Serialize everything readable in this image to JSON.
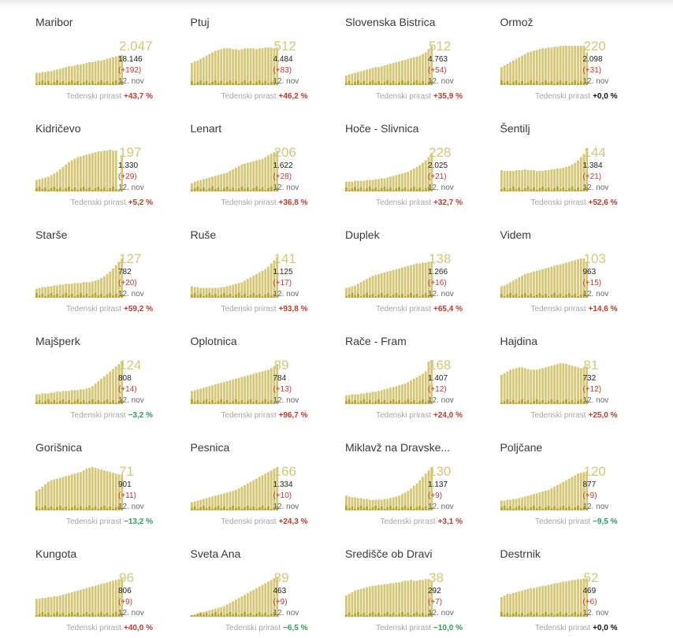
{
  "colors": {
    "bar_light": "#d6c776",
    "bar_dark": "#b8a432",
    "increase": "#c0392b",
    "decrease": "#27a35a",
    "neutral": "#111111"
  },
  "weekly_label": "Tedenski prirast",
  "chart_data": [
    {
      "type": "bar",
      "title": "Maribor",
      "total": "2.047",
      "cumulative": "18.146",
      "change": "(+192)",
      "date": "12. nov",
      "weekly": "+43,7 %",
      "trend": "pos",
      "values": [
        15,
        15,
        16,
        16,
        17,
        17,
        18,
        19,
        20,
        21,
        22,
        23,
        23,
        24,
        25,
        25,
        26,
        27,
        28,
        28,
        29,
        30,
        30,
        31,
        32,
        33,
        34,
        35,
        36,
        37
      ]
    },
    {
      "type": "bar",
      "title": "Ptuj",
      "total": "512",
      "cumulative": "4.484",
      "change": "(+83)",
      "date": "12. nov",
      "weekly": "+46,2 %",
      "trend": "pos",
      "values": [
        27,
        29,
        30,
        32,
        34,
        36,
        38,
        40,
        42,
        43,
        44,
        45,
        45,
        45,
        44,
        44,
        43,
        44,
        45,
        45,
        45,
        45,
        44,
        45,
        45,
        46,
        46,
        46,
        45,
        46
      ]
    },
    {
      "type": "bar",
      "title": "Slovenska Bistrica",
      "total": "512",
      "cumulative": "4.763",
      "change": "(+54)",
      "date": "12. nov",
      "weekly": "+35,9 %",
      "trend": "pos",
      "values": [
        12,
        13,
        14,
        15,
        16,
        17,
        18,
        19,
        20,
        21,
        22,
        22,
        23,
        24,
        25,
        26,
        27,
        28,
        29,
        30,
        31,
        32,
        33,
        34,
        35,
        36,
        38,
        40,
        44,
        48
      ]
    },
    {
      "type": "bar",
      "title": "Ormož",
      "total": "220",
      "cumulative": "2.098",
      "change": "(+31)",
      "date": "12. nov",
      "weekly": "+0,0 %",
      "trend": "zero",
      "values": [
        22,
        24,
        26,
        28,
        30,
        32,
        34,
        36,
        38,
        40,
        41,
        42,
        43,
        44,
        45,
        45,
        46,
        46,
        47,
        47,
        48,
        48,
        48,
        48,
        48,
        48,
        48,
        48,
        48,
        40
      ]
    },
    {
      "type": "bar",
      "title": "Kidričevo",
      "total": "197",
      "cumulative": "1.330",
      "change": "(+29)",
      "date": "12. nov",
      "weekly": "+5,2 %",
      "trend": "pos",
      "values": [
        14,
        15,
        16,
        17,
        18,
        20,
        22,
        24,
        27,
        30,
        33,
        36,
        38,
        40,
        42,
        43,
        44,
        45,
        46,
        47,
        48,
        49,
        49,
        50,
        50,
        51,
        50,
        50,
        2,
        44
      ]
    },
    {
      "type": "bar",
      "title": "Lenart",
      "total": "206",
      "cumulative": "1.622",
      "change": "(+28)",
      "date": "12. nov",
      "weekly": "+36,8 %",
      "trend": "pos",
      "values": [
        10,
        12,
        13,
        14,
        15,
        16,
        17,
        18,
        19,
        20,
        21,
        22,
        23,
        25,
        27,
        29,
        31,
        33,
        34,
        35,
        36,
        37,
        38,
        39,
        40,
        42,
        44,
        46,
        48,
        50
      ]
    },
    {
      "type": "bar",
      "title": "Hoče - Slivnica",
      "total": "228",
      "cumulative": "2.025",
      "change": "(+21)",
      "date": "12. nov",
      "weekly": "+32,7 %",
      "trend": "pos",
      "values": [
        12,
        12,
        12,
        13,
        13,
        13,
        13,
        14,
        14,
        14,
        15,
        15,
        16,
        16,
        17,
        18,
        19,
        20,
        21,
        22,
        23,
        24,
        26,
        28,
        30,
        32,
        35,
        38,
        42,
        47
      ]
    },
    {
      "type": "bar",
      "title": "Šentilj",
      "total": "144",
      "cumulative": "1.384",
      "change": "(+21)",
      "date": "12. nov",
      "weekly": "+52,6 %",
      "trend": "pos",
      "values": [
        26,
        25,
        25,
        25,
        25,
        26,
        26,
        26,
        27,
        26,
        26,
        26,
        25,
        25,
        25,
        26,
        26,
        27,
        27,
        28,
        28,
        29,
        30,
        31,
        33,
        35,
        38,
        42,
        46,
        52
      ]
    },
    {
      "type": "bar",
      "title": "Starše",
      "total": "127",
      "cumulative": "782",
      "change": "(+20)",
      "date": "12. nov",
      "weekly": "+59,2 %",
      "trend": "pos",
      "values": [
        11,
        12,
        13,
        13,
        14,
        14,
        15,
        15,
        16,
        16,
        17,
        17,
        17,
        18,
        18,
        18,
        19,
        19,
        19,
        20,
        21,
        22,
        24,
        26,
        29,
        32,
        36,
        40,
        44,
        48
      ]
    },
    {
      "type": "bar",
      "title": "Ruše",
      "total": "141",
      "cumulative": "1.125",
      "change": "(+17)",
      "date": "12. nov",
      "weekly": "+93,8 %",
      "trend": "pos",
      "values": [
        14,
        13,
        13,
        12,
        12,
        12,
        12,
        12,
        12,
        12,
        13,
        13,
        14,
        15,
        16,
        17,
        18,
        19,
        21,
        23,
        25,
        27,
        29,
        31,
        33,
        35,
        38,
        42,
        46,
        50
      ]
    },
    {
      "type": "bar",
      "title": "Duplek",
      "total": "138",
      "cumulative": "1.266",
      "change": "(+16)",
      "date": "12. nov",
      "weekly": "+65,4 %",
      "trend": "pos",
      "values": [
        12,
        13,
        14,
        15,
        17,
        19,
        21,
        23,
        25,
        27,
        28,
        29,
        30,
        31,
        32,
        33,
        34,
        35,
        36,
        37,
        38,
        39,
        40,
        41,
        42,
        42,
        43,
        43,
        44,
        44
      ]
    },
    {
      "type": "bar",
      "title": "Videm",
      "total": "103",
      "cumulative": "963",
      "change": "(+15)",
      "date": "12. nov",
      "weekly": "+14,6 %",
      "trend": "pos",
      "values": [
        14,
        15,
        17,
        19,
        21,
        23,
        25,
        27,
        29,
        30,
        31,
        32,
        33,
        34,
        35,
        36,
        37,
        38,
        39,
        40,
        41,
        42,
        43,
        44,
        45,
        46,
        47,
        48,
        48,
        44
      ]
    },
    {
      "type": "bar",
      "title": "Majšperk",
      "total": "124",
      "cumulative": "808",
      "change": "(+14)",
      "date": "12. nov",
      "weekly": "−3,2 %",
      "trend": "neg",
      "values": [
        12,
        12,
        13,
        13,
        13,
        14,
        14,
        15,
        15,
        16,
        16,
        16,
        17,
        17,
        17,
        18,
        18,
        19,
        20,
        22,
        25,
        28,
        31,
        34,
        37,
        40,
        43,
        46,
        49,
        52
      ]
    },
    {
      "type": "bar",
      "title": "Oplotnica",
      "total": "89",
      "cumulative": "784",
      "change": "(+13)",
      "date": "12. nov",
      "weekly": "+96,7 %",
      "trend": "pos",
      "values": [
        16,
        17,
        18,
        19,
        20,
        21,
        22,
        23,
        24,
        25,
        26,
        27,
        28,
        29,
        30,
        31,
        32,
        33,
        34,
        35,
        36,
        37,
        38,
        39,
        40,
        41,
        42,
        44,
        46,
        48
      ]
    },
    {
      "type": "bar",
      "title": "Rače - Fram",
      "total": "168",
      "cumulative": "1.407",
      "change": "(+12)",
      "date": "12. nov",
      "weekly": "+24,0 %",
      "trend": "pos",
      "values": [
        11,
        11,
        12,
        12,
        12,
        13,
        13,
        14,
        14,
        15,
        15,
        16,
        17,
        18,
        19,
        20,
        21,
        22,
        23,
        24,
        25,
        27,
        29,
        31,
        33,
        35,
        37,
        40,
        52,
        54
      ]
    },
    {
      "type": "bar",
      "title": "Hajdina",
      "total": "81",
      "cumulative": "732",
      "change": "(+12)",
      "date": "12. nov",
      "weekly": "+25,0 %",
      "trend": "pos",
      "values": [
        36,
        38,
        40,
        42,
        43,
        44,
        45,
        45,
        44,
        43,
        42,
        42,
        42,
        43,
        44,
        45,
        46,
        47,
        48,
        49,
        50,
        50,
        49,
        48,
        47,
        46,
        45,
        44,
        45,
        46
      ]
    },
    {
      "type": "bar",
      "title": "Gorišnica",
      "total": "71",
      "cumulative": "901",
      "change": "(+11)",
      "date": "12. nov",
      "weekly": "−13,2 %",
      "trend": "neg",
      "values": [
        24,
        26,
        29,
        32,
        35,
        37,
        38,
        39,
        40,
        41,
        42,
        43,
        44,
        45,
        46,
        47,
        49,
        51,
        52,
        53,
        52,
        51,
        50,
        49,
        48,
        47,
        46,
        45,
        44,
        44
      ]
    },
    {
      "type": "bar",
      "title": "Pesnica",
      "total": "166",
      "cumulative": "1.334",
      "change": "(+10)",
      "date": "12. nov",
      "weekly": "+24,3 %",
      "trend": "pos",
      "values": [
        10,
        11,
        12,
        13,
        14,
        15,
        16,
        17,
        18,
        19,
        20,
        21,
        22,
        23,
        24,
        25,
        27,
        29,
        31,
        33,
        35,
        37,
        39,
        41,
        43,
        45,
        47,
        49,
        51,
        52
      ]
    },
    {
      "type": "bar",
      "title": "Miklavž na Dravske...",
      "total": "130",
      "cumulative": "1.137",
      "change": "(+9)",
      "date": "12. nov",
      "weekly": "+3,1 %",
      "trend": "pos",
      "values": [
        18,
        17,
        16,
        16,
        15,
        15,
        14,
        14,
        13,
        13,
        13,
        13,
        13,
        14,
        14,
        15,
        16,
        17,
        18,
        20,
        22,
        24,
        27,
        30,
        33,
        37,
        41,
        45,
        49,
        52
      ]
    },
    {
      "type": "bar",
      "title": "Poljčane",
      "total": "120",
      "cumulative": "877",
      "change": "(+9)",
      "date": "12. nov",
      "weekly": "−9,5 %",
      "trend": "neg",
      "values": [
        12,
        12,
        13,
        13,
        14,
        14,
        15,
        16,
        17,
        18,
        19,
        20,
        21,
        22,
        23,
        24,
        25,
        27,
        29,
        31,
        33,
        35,
        37,
        39,
        41,
        43,
        45,
        46,
        47,
        48
      ]
    },
    {
      "type": "bar",
      "title": "Kungota",
      "total": "96",
      "cumulative": "806",
      "change": "(+9)",
      "date": "12. nov",
      "weekly": "+40,0 %",
      "trend": "pos",
      "values": [
        22,
        22,
        23,
        23,
        24,
        24,
        25,
        25,
        26,
        27,
        28,
        29,
        30,
        31,
        32,
        33,
        34,
        35,
        36,
        37,
        38,
        39,
        40,
        41,
        42,
        43,
        44,
        45,
        46,
        47
      ]
    },
    {
      "type": "bar",
      "title": "Sveta Ana",
      "total": "89",
      "cumulative": "463",
      "change": "(+9)",
      "date": "12. nov",
      "weekly": "−6,5 %",
      "trend": "neg",
      "values": [
        2,
        3,
        4,
        5,
        6,
        7,
        8,
        9,
        10,
        11,
        12,
        13,
        15,
        17,
        19,
        21,
        23,
        25,
        27,
        29,
        31,
        33,
        35,
        37,
        39,
        41,
        43,
        45,
        47,
        49
      ]
    },
    {
      "type": "bar",
      "title": "Središče ob Dravi",
      "total": "38",
      "cumulative": "292",
      "change": "(+7)",
      "date": "12. nov",
      "weekly": "−10,0 %",
      "trend": "neg",
      "values": [
        26,
        28,
        30,
        32,
        33,
        34,
        35,
        36,
        37,
        38,
        38,
        39,
        39,
        40,
        40,
        41,
        41,
        42,
        42,
        43,
        44,
        44,
        45,
        44,
        44,
        45,
        45,
        46,
        46,
        44
      ]
    },
    {
      "type": "bar",
      "title": "Destrnik",
      "total": "52",
      "cumulative": "469",
      "change": "(+6)",
      "date": "12. nov",
      "weekly": "+0,0 %",
      "trend": "zero",
      "values": [
        24,
        26,
        28,
        28,
        29,
        30,
        31,
        32,
        33,
        34,
        35,
        35,
        36,
        37,
        38,
        38,
        39,
        40,
        41,
        41,
        42,
        43,
        43,
        44,
        45,
        45,
        46,
        46,
        47,
        47
      ]
    }
  ]
}
